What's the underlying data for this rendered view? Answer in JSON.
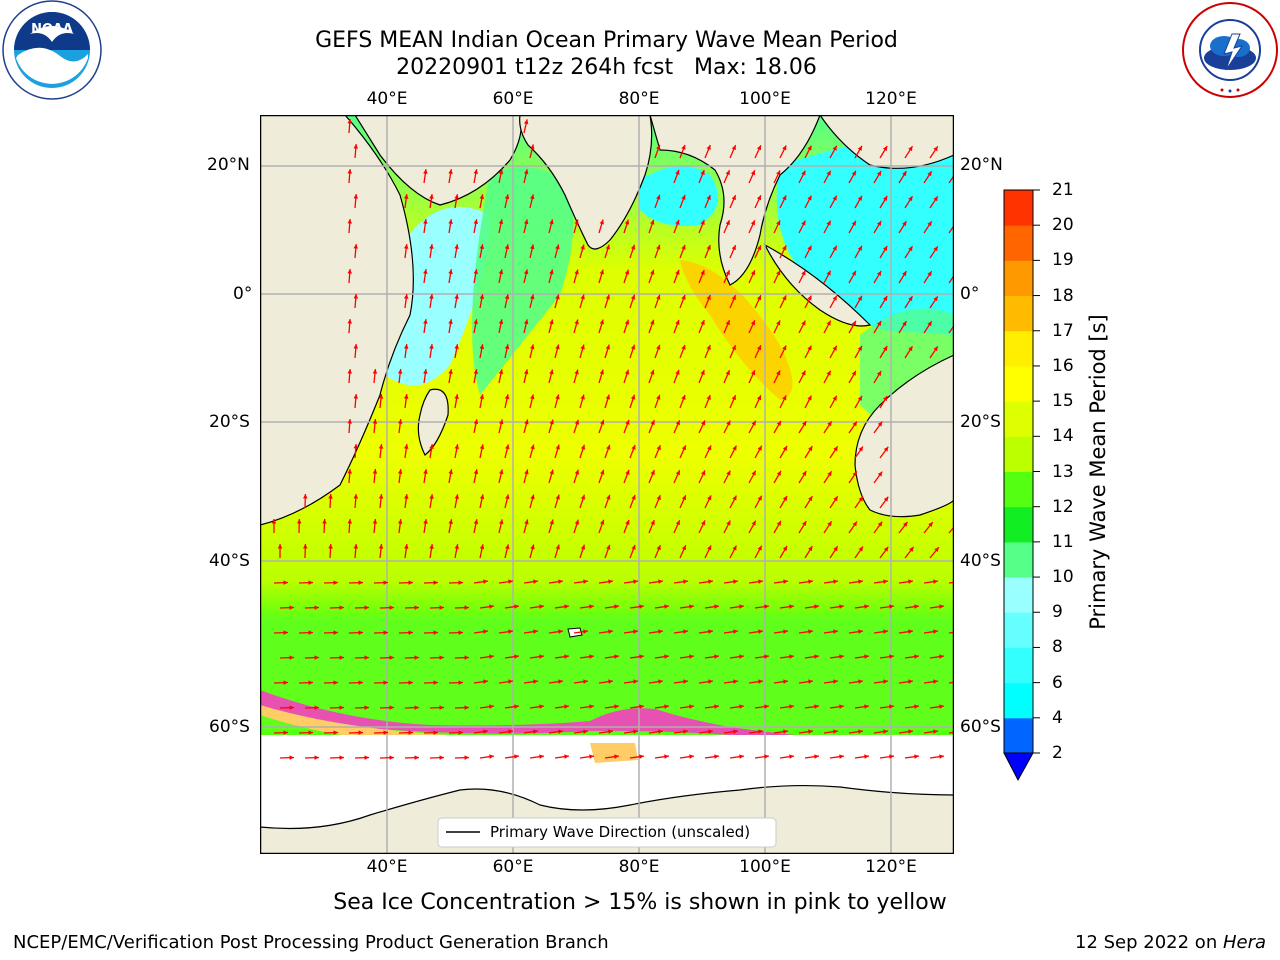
{
  "header": {
    "title_line1": "GEFS MEAN Indian Ocean Primary Wave Mean Period",
    "title_line2": "20220901 t12z 264h fcst   Max: 18.06"
  },
  "logos": {
    "left": {
      "text": "NOAA",
      "icon": "noaa-logo-icon"
    },
    "right": {
      "text": "NATIONAL WEATHER SERVICE",
      "icon": "nws-logo-icon"
    }
  },
  "map": {
    "lon_labels": [
      "40°E",
      "60°E",
      "80°E",
      "100°E",
      "120°E"
    ],
    "lat_labels": [
      "20°N",
      "0°",
      "20°S",
      "40°S",
      "60°S"
    ],
    "legend_label": "Primary Wave Direction (unscaled)",
    "colors": {
      "land": "#efecd9",
      "ice_shelf": "#ffffff",
      "arrow": "#ff0000",
      "sea_ice_low": "#ff33cc",
      "sea_ice_high": "#ffcc66"
    }
  },
  "colorbar": {
    "label": "Primary Wave Mean Period [s]",
    "ticks": [
      "2",
      "4",
      "6",
      "8",
      "9",
      "10",
      "11",
      "12",
      "13",
      "14",
      "15",
      "16",
      "17",
      "18",
      "19",
      "20",
      "21"
    ],
    "colors": [
      "#0066ff",
      "#00ffff",
      "#33ffff",
      "#66ffff",
      "#99ffff",
      "#55ff88",
      "#11ee22",
      "#55ff11",
      "#bbff00",
      "#ddff00",
      "#ffff00",
      "#ffee00",
      "#ffbb00",
      "#ff9900",
      "#ff6600",
      "#ff3300",
      "#ff0000"
    ],
    "under_color": "#0000ff"
  },
  "footer": {
    "note": "Sea Ice Concentration > 15% is shown in pink to yellow",
    "credit_left": "NCEP/EMC/Verification Post Processing Product Generation Branch",
    "credit_right_prefix": "12 Sep 2022 on ",
    "credit_right_host": "Hera"
  }
}
